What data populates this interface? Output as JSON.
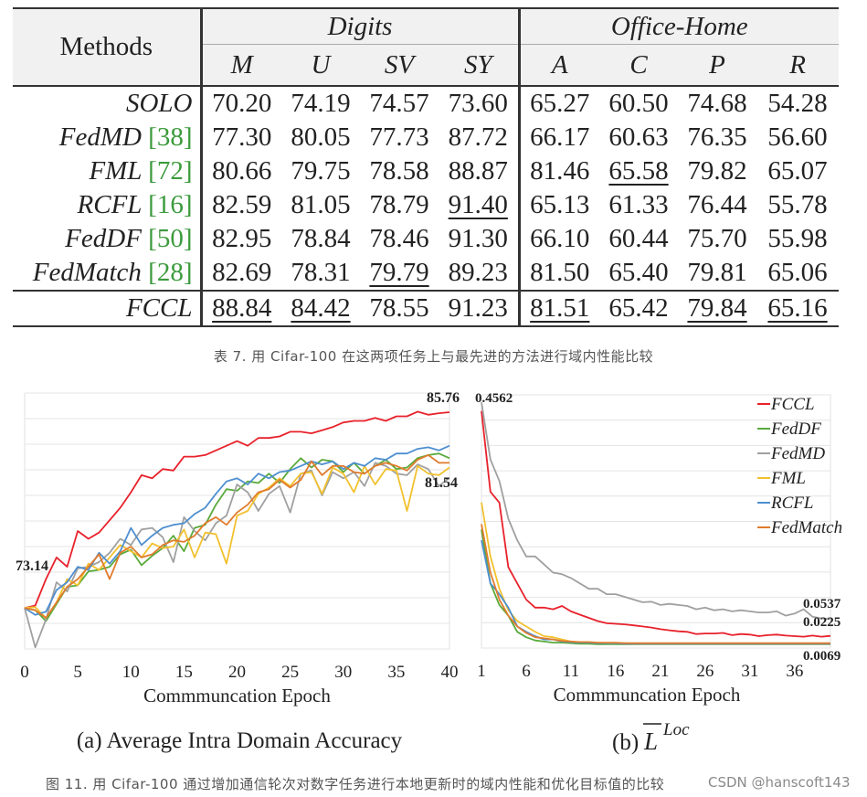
{
  "table": {
    "methods_header": "Methods",
    "groups": [
      {
        "name": "Digits",
        "columns": [
          "M",
          "U",
          "SV",
          "SY"
        ]
      },
      {
        "name": "Office-Home",
        "columns": [
          "A",
          "C",
          "P",
          "R"
        ]
      }
    ],
    "rows": [
      {
        "method": "SOLO",
        "ref": "",
        "values": [
          "70.20",
          "74.19",
          "74.57",
          "73.60",
          "65.27",
          "60.50",
          "74.68",
          "54.28"
        ],
        "underline": [
          false,
          false,
          false,
          false,
          false,
          false,
          false,
          false
        ]
      },
      {
        "method": "FedMD",
        "ref": "[38]",
        "values": [
          "77.30",
          "80.05",
          "77.73",
          "87.72",
          "66.17",
          "60.63",
          "76.35",
          "56.60"
        ],
        "underline": [
          false,
          false,
          false,
          false,
          false,
          false,
          false,
          false
        ]
      },
      {
        "method": "FML",
        "ref": "[72]",
        "values": [
          "80.66",
          "79.75",
          "78.58",
          "88.87",
          "81.46",
          "65.58",
          "79.82",
          "65.07"
        ],
        "underline": [
          false,
          false,
          false,
          false,
          false,
          true,
          false,
          false
        ]
      },
      {
        "method": "RCFL",
        "ref": "[16]",
        "values": [
          "82.59",
          "81.05",
          "78.79",
          "91.40",
          "65.13",
          "61.33",
          "76.44",
          "55.78"
        ],
        "underline": [
          false,
          false,
          false,
          true,
          false,
          false,
          false,
          false
        ]
      },
      {
        "method": "FedDF",
        "ref": "[50]",
        "values": [
          "82.95",
          "78.84",
          "78.46",
          "91.30",
          "66.10",
          "60.44",
          "75.70",
          "55.98"
        ],
        "underline": [
          false,
          false,
          false,
          false,
          false,
          false,
          false,
          false
        ]
      },
      {
        "method": "FedMatch",
        "ref": "[28]",
        "values": [
          "82.69",
          "78.31",
          "79.79",
          "89.23",
          "81.50",
          "65.40",
          "79.81",
          "65.06"
        ],
        "underline": [
          false,
          false,
          true,
          false,
          false,
          false,
          false,
          false
        ]
      },
      {
        "method": "FCCL",
        "ref": "",
        "values": [
          "88.84",
          "84.42",
          "78.55",
          "91.23",
          "81.51",
          "65.42",
          "79.84",
          "65.16"
        ],
        "underline": [
          true,
          true,
          false,
          false,
          true,
          false,
          true,
          true
        ]
      }
    ]
  },
  "table_caption": "表 7. 用 Cifar-100 在这两项任务上与最先进的方法进行域内性能比较",
  "figure_caption": "图 11. 用 Cifar-100 通过增加通信轮次对数字任务进行本地更新时的域内性能和优化目标值的比较",
  "watermark": "CSDN @hanscoft143",
  "colors": {
    "FCCL": "#e8212b",
    "FedDF": "#5aaa3c",
    "FedMD": "#a0a0a0",
    "FML": "#f2c12e",
    "RCFL": "#4e8fd0",
    "FedMatch": "#e07b2c"
  },
  "chart_data": [
    {
      "type": "line",
      "title": "(a) Average Intra Domain Accuracy",
      "xlabel": "Commmuncation Epoch",
      "ylabel": "",
      "xlim": [
        0,
        40
      ],
      "ylim": [
        70.5,
        87.0
      ],
      "xticks": [
        "0",
        "5",
        "10",
        "15",
        "20",
        "25",
        "30",
        "35",
        "40"
      ],
      "annotations": [
        {
          "text": "85.76",
          "x": 40,
          "y": 85.76
        },
        {
          "text": "81.54",
          "x": 40,
          "y": 81.54
        },
        {
          "text": "73.14",
          "x": 0,
          "y": 73.14
        }
      ],
      "series": [
        {
          "name": "FCCL",
          "values": [
            73.14,
            73.3,
            75.0,
            76.4,
            75.8,
            78.1,
            77.6,
            78.0,
            78.8,
            79.6,
            80.6,
            81.7,
            81.5,
            82.1,
            82.0,
            82.9,
            82.9,
            83.0,
            83.3,
            83.6,
            83.9,
            83.6,
            84.1,
            84.1,
            84.2,
            84.5,
            84.5,
            84.4,
            84.6,
            84.8,
            85.1,
            85.2,
            85.2,
            85.4,
            85.2,
            85.5,
            85.5,
            85.8,
            85.6,
            85.7,
            85.76
          ]
        },
        {
          "name": "FedDF",
          "values": [
            73.14,
            73.0,
            72.3,
            73.4,
            74.5,
            74.6,
            75.5,
            75.6,
            75.8,
            76.6,
            76.9,
            75.9,
            76.5,
            77.0,
            77.8,
            76.8,
            78.3,
            78.5,
            79.8,
            80.8,
            80.7,
            81.3,
            81.2,
            81.8,
            81.2,
            82.1,
            82.8,
            82.2,
            82.7,
            82.6,
            81.9,
            82.5,
            81.8,
            82.3,
            82.7,
            82.1,
            82.2,
            82.8,
            83.0,
            83.1,
            82.8
          ]
        },
        {
          "name": "FedMD",
          "values": [
            73.14,
            70.6,
            72.4,
            74.8,
            74.2,
            75.7,
            75.8,
            76.1,
            76.7,
            77.6,
            77.2,
            78.2,
            78.3,
            77.7,
            76.1,
            79.0,
            78.1,
            77.5,
            78.6,
            79.1,
            81.1,
            80.6,
            79.4,
            80.5,
            81.0,
            79.3,
            81.8,
            82.0,
            80.4,
            81.9,
            81.5,
            81.9,
            81.0,
            82.5,
            82.3,
            81.8,
            81.7,
            82.4,
            82.1,
            81.0,
            81.54
          ]
        },
        {
          "name": "FML",
          "values": [
            73.14,
            73.2,
            72.5,
            73.5,
            75.0,
            74.6,
            76.0,
            75.6,
            76.4,
            77.2,
            76.8,
            76.4,
            77.3,
            77.0,
            77.1,
            78.2,
            76.4,
            78.0,
            77.9,
            76.0,
            79.1,
            79.4,
            80.5,
            80.9,
            81.5,
            81.0,
            81.8,
            81.9,
            80.5,
            82.2,
            81.8,
            80.6,
            82.3,
            81.1,
            82.1,
            82.0,
            79.4,
            82.3,
            81.8,
            81.7,
            82.2
          ]
        },
        {
          "name": "RCFL",
          "values": [
            73.14,
            72.7,
            72.9,
            74.3,
            74.8,
            75.8,
            75.6,
            76.7,
            76.0,
            76.8,
            78.3,
            77.2,
            77.8,
            78.3,
            78.5,
            78.6,
            79.2,
            79.6,
            80.5,
            81.3,
            81.5,
            81.1,
            81.8,
            81.5,
            81.9,
            82.0,
            82.3,
            82.6,
            82.4,
            82.6,
            82.1,
            82.5,
            82.3,
            82.8,
            82.7,
            83.1,
            83.1,
            83.4,
            83.5,
            83.3,
            83.6
          ]
        },
        {
          "name": "FedMatch",
          "values": [
            73.14,
            73.0,
            72.5,
            73.5,
            74.5,
            75.0,
            75.8,
            76.6,
            75.0,
            76.7,
            77.1,
            76.4,
            76.6,
            77.2,
            77.5,
            77.4,
            77.8,
            78.6,
            79.0,
            78.5,
            79.3,
            79.8,
            80.6,
            80.8,
            81.4,
            80.9,
            81.4,
            82.6,
            81.7,
            82.3,
            82.3,
            81.9,
            81.8,
            82.3,
            82.5,
            82.3,
            82.0,
            82.7,
            83.0,
            82.5,
            82.5
          ]
        }
      ]
    },
    {
      "type": "line",
      "title": "(b) L Loc (overlined L with superscript Loc)",
      "title_main": "(b) ",
      "title_symbol": "L",
      "title_sup": "Loc",
      "xlabel": "Commmuncation Epoch",
      "ylabel": "",
      "xlim": [
        1,
        40
      ],
      "ylim": [
        0.0,
        0.47
      ],
      "xticks": [
        "1",
        "6",
        "11",
        "16",
        "21",
        "26",
        "31",
        "36"
      ],
      "annotations": [
        {
          "text": "0.4562",
          "x": 1,
          "y": 0.4562
        },
        {
          "text": "0.0537",
          "x": 40,
          "y": 0.0537
        },
        {
          "text": "0.0225",
          "x": 40,
          "y": 0.0225
        },
        {
          "text": "0.0069",
          "x": 40,
          "y": 0.0069
        }
      ],
      "legend_position": "top-right",
      "series": [
        {
          "name": "FCCL",
          "values": [
            0.44,
            0.29,
            0.27,
            0.15,
            0.12,
            0.09,
            0.075,
            0.075,
            0.072,
            0.078,
            0.068,
            0.062,
            0.056,
            0.05,
            0.046,
            0.045,
            0.044,
            0.042,
            0.04,
            0.038,
            0.035,
            0.033,
            0.031,
            0.03,
            0.026,
            0.027,
            0.027,
            0.028,
            0.024,
            0.026,
            0.025,
            0.022,
            0.024,
            0.025,
            0.023,
            0.022,
            0.021,
            0.023,
            0.021,
            0.0225
          ]
        },
        {
          "name": "FedDF",
          "values": [
            0.22,
            0.12,
            0.08,
            0.06,
            0.03,
            0.02,
            0.014,
            0.012,
            0.01,
            0.01,
            0.009,
            0.008,
            0.008,
            0.007,
            0.007,
            0.007,
            0.007,
            0.007,
            0.007,
            0.007,
            0.007,
            0.007,
            0.007,
            0.007,
            0.007,
            0.007,
            0.007,
            0.007,
            0.007,
            0.007,
            0.007,
            0.007,
            0.007,
            0.007,
            0.007,
            0.007,
            0.007,
            0.007,
            0.007,
            0.0069
          ]
        },
        {
          "name": "FedMD",
          "values": [
            0.4562,
            0.35,
            0.31,
            0.24,
            0.2,
            0.17,
            0.17,
            0.155,
            0.14,
            0.137,
            0.13,
            0.12,
            0.11,
            0.11,
            0.1,
            0.1,
            0.095,
            0.09,
            0.085,
            0.086,
            0.08,
            0.082,
            0.08,
            0.078,
            0.072,
            0.075,
            0.07,
            0.072,
            0.068,
            0.07,
            0.068,
            0.066,
            0.066,
            0.068,
            0.06,
            0.064,
            0.072,
            0.058,
            0.055,
            0.0537
          ]
        },
        {
          "name": "FML",
          "values": [
            0.27,
            0.17,
            0.11,
            0.07,
            0.05,
            0.04,
            0.03,
            0.022,
            0.02,
            0.016,
            0.012,
            0.011,
            0.011,
            0.01,
            0.009,
            0.009,
            0.009,
            0.008,
            0.008,
            0.008,
            0.008,
            0.008,
            0.008,
            0.008,
            0.008,
            0.008,
            0.008,
            0.008,
            0.008,
            0.008,
            0.008,
            0.008,
            0.008,
            0.008,
            0.008,
            0.008,
            0.008,
            0.008,
            0.008,
            0.008
          ]
        },
        {
          "name": "RCFL",
          "values": [
            0.2,
            0.12,
            0.1,
            0.075,
            0.04,
            0.03,
            0.022,
            0.016,
            0.016,
            0.012,
            0.011,
            0.01,
            0.01,
            0.009,
            0.009,
            0.009,
            0.008,
            0.008,
            0.008,
            0.008,
            0.008,
            0.008,
            0.008,
            0.008,
            0.008,
            0.008,
            0.008,
            0.008,
            0.008,
            0.008,
            0.008,
            0.008,
            0.008,
            0.008,
            0.008,
            0.008,
            0.008,
            0.008,
            0.008,
            0.008
          ]
        },
        {
          "name": "FedMatch",
          "values": [
            0.23,
            0.14,
            0.09,
            0.06,
            0.04,
            0.028,
            0.02,
            0.018,
            0.016,
            0.013,
            0.012,
            0.011,
            0.011,
            0.01,
            0.01,
            0.01,
            0.009,
            0.009,
            0.009,
            0.009,
            0.009,
            0.009,
            0.009,
            0.009,
            0.009,
            0.009,
            0.009,
            0.009,
            0.009,
            0.009,
            0.009,
            0.009,
            0.009,
            0.009,
            0.009,
            0.009,
            0.009,
            0.009,
            0.009,
            0.009
          ]
        }
      ]
    }
  ]
}
